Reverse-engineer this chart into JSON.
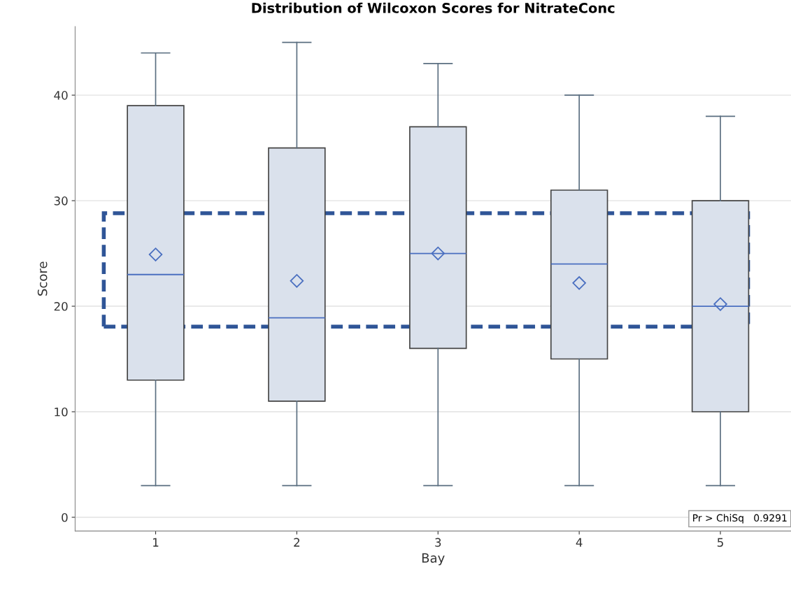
{
  "chart_data": {
    "type": "box",
    "title": "Distribution of Wilcoxon Scores for NitrateConc",
    "xlabel": "Bay",
    "ylabel": "Score",
    "categories": [
      "1",
      "2",
      "3",
      "4",
      "5"
    ],
    "boxes": [
      {
        "low": 3,
        "q1": 13,
        "median": 23,
        "q3": 39,
        "high": 44,
        "mean": 24.9
      },
      {
        "low": 3,
        "q1": 11,
        "median": 18.9,
        "q3": 35,
        "high": 45,
        "mean": 22.4
      },
      {
        "low": 3,
        "q1": 16,
        "median": 25,
        "q3": 37,
        "high": 43,
        "mean": 25
      },
      {
        "low": 3,
        "q1": 15,
        "median": 24,
        "q3": 31,
        "high": 40,
        "mean": 22.2
      },
      {
        "low": 3,
        "q1": 10,
        "median": 20,
        "q3": 30,
        "high": 38,
        "mean": 20.2
      }
    ],
    "color": "#dae1ec",
    "ylim": [
      -1.3,
      46.5
    ],
    "yticks": [
      0,
      10,
      20,
      30,
      40
    ],
    "grid": "y",
    "annotations": [
      "Pr > ChiSq   0.9291"
    ]
  }
}
